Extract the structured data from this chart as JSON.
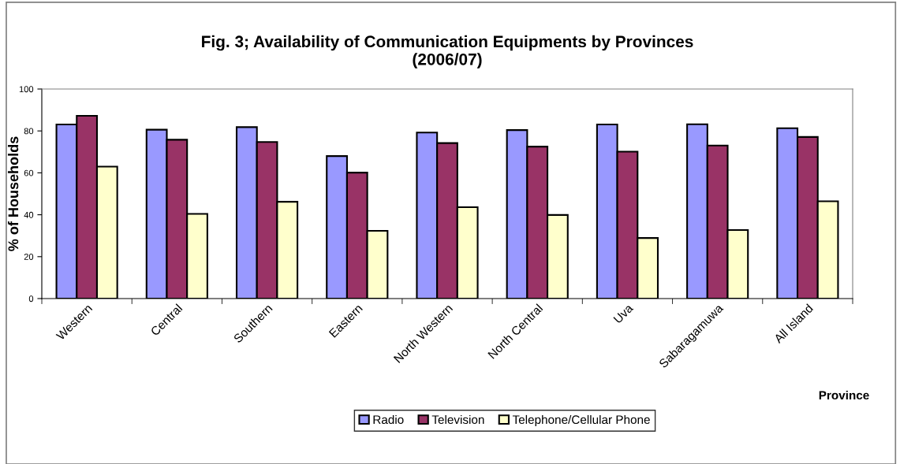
{
  "chart_data": {
    "type": "bar",
    "title": "Fig. 3; Availability of Communication Equipments by Provinces\n(2006/07)",
    "xlabel": "Province",
    "ylabel": "% of Households",
    "categories": [
      "Western",
      "Central",
      "Southern",
      "Eastern",
      "North Western",
      "North Central",
      "Uva",
      "Sabaragamuwa",
      "All Island"
    ],
    "series": [
      {
        "name": "Radio",
        "color": "#9999ff",
        "values": [
          83.1,
          80.6,
          81.8,
          68.0,
          79.2,
          80.4,
          83.1,
          83.2,
          81.3
        ]
      },
      {
        "name": "Television",
        "color": "#993366",
        "values": [
          87.2,
          75.8,
          74.7,
          60.1,
          74.2,
          72.5,
          70.1,
          73.0,
          77.1
        ]
      },
      {
        "name": "Telephone/Cellular Phone",
        "color": "#ffffcc",
        "values": [
          63.0,
          40.4,
          46.2,
          32.3,
          43.6,
          39.9,
          28.9,
          32.7,
          46.4
        ]
      }
    ],
    "ylim": [
      0,
      100
    ],
    "yticks": [
      0,
      20,
      40,
      60,
      80,
      100
    ],
    "grid": false,
    "legend": "bottom"
  }
}
